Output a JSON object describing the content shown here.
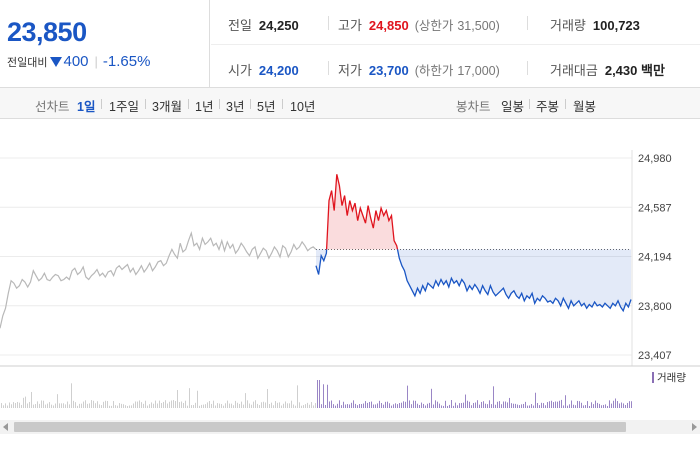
{
  "header": {
    "price": "23,850",
    "change_label": "전일대비",
    "change_value": "400",
    "change_pct": "-1.65%",
    "info": {
      "prev_close_label": "전일",
      "prev_close": "24,250",
      "high_label": "고가",
      "high": "24,850",
      "upper_limit_label": "(상한가",
      "upper_limit": "31,500)",
      "volume_label": "거래량",
      "volume": "100,723",
      "open_label": "시가",
      "open": "24,200",
      "low_label": "저가",
      "low": "23,700",
      "lower_limit_label": "(하한가",
      "lower_limit": "17,000)",
      "amount_label": "거래대금",
      "amount": "2,430 백만"
    }
  },
  "tabs": {
    "line_label": "선차트",
    "line_items": [
      "1일",
      "1주일",
      "3개월",
      "1년",
      "3년",
      "5년",
      "10년"
    ],
    "selected": "1일",
    "candle_label": "봉차트",
    "candle_items": [
      "일봉",
      "주봉",
      "월봉"
    ]
  },
  "colors": {
    "up": "#e0141e",
    "down": "#1a56c4",
    "prev": "#b8b8b8"
  },
  "chart_data": {
    "type": "line",
    "y_ticks": [
      "24,980",
      "24,587",
      "24,194",
      "23,800",
      "23,407"
    ],
    "ylim": [
      23407,
      24980
    ],
    "base_price": 24250,
    "volume_legend": "거래량",
    "prev_day_series": [
      23620,
      23720,
      23780,
      23900,
      24000,
      23980,
      23940,
      23960,
      24010,
      23990,
      23950,
      23990,
      24080,
      24040,
      24000,
      24020,
      24060,
      24010,
      24000,
      24030,
      24050,
      24040,
      24000,
      24010,
      24030,
      24010,
      24080,
      24100,
      24050,
      24070,
      24110,
      24030,
      24010,
      24040,
      24060,
      24090,
      24040,
      24060,
      24030,
      24070,
      24080,
      24040,
      24100,
      24120,
      24090,
      24110,
      24130,
      24070,
      24100,
      24050,
      24080,
      24120,
      24070,
      24100,
      24140,
      24080,
      24110,
      24150,
      24160,
      24120,
      24140,
      24200,
      24250,
      24210,
      24180,
      24300,
      24230,
      24250,
      24320,
      24380,
      24280,
      24300,
      24250,
      24340,
      24290,
      24310,
      24340,
      24280,
      24300,
      24250,
      24320,
      24240,
      24310,
      24260,
      24290,
      24220,
      24250,
      24300,
      24270,
      24230,
      24200,
      24250,
      24270,
      24180,
      24220,
      24260,
      24240,
      24180,
      24220,
      24270,
      24240,
      24190,
      24280,
      24260,
      24190,
      24230,
      24290,
      24250,
      24270,
      24310,
      24280,
      24240,
      24260,
      24270,
      24250
    ],
    "today_series": [
      24120,
      24050,
      24200,
      24160,
      24220,
      24640,
      24720,
      24560,
      24850,
      24760,
      24600,
      24680,
      24520,
      24640,
      24560,
      24620,
      24480,
      24580,
      24520,
      24460,
      24600,
      24500,
      24420,
      24560,
      24480,
      24580,
      24520,
      24560,
      24480,
      24520,
      24320,
      24280,
      24180,
      24120,
      24080,
      24000,
      23960,
      23920,
      23880,
      23940,
      23900,
      23960,
      23920,
      23980,
      23960,
      23940,
      24000,
      23960,
      24010,
      23970,
      24000,
      23950,
      24020,
      23980,
      24000,
      23960,
      24010,
      23980,
      23920,
      23960,
      23930,
      23970,
      23940,
      23900,
      23960,
      23920,
      23890,
      23960,
      23910,
      23880,
      23900,
      23920,
      23940,
      23890,
      23860,
      23900,
      23920,
      23880,
      23860,
      23900,
      23840,
      23880,
      23860,
      23900,
      23820,
      23860,
      23840,
      23880,
      23860,
      23830,
      23840,
      23820,
      23860,
      23840,
      23800,
      23860,
      23820,
      23780,
      23840,
      23800,
      23820,
      23840,
      23800,
      23820,
      23780,
      23810,
      23790,
      23830,
      23800,
      23810,
      23790,
      23820,
      23800,
      23780,
      23820,
      23800,
      23840,
      23790,
      23760,
      23820,
      23790,
      23850
    ]
  }
}
